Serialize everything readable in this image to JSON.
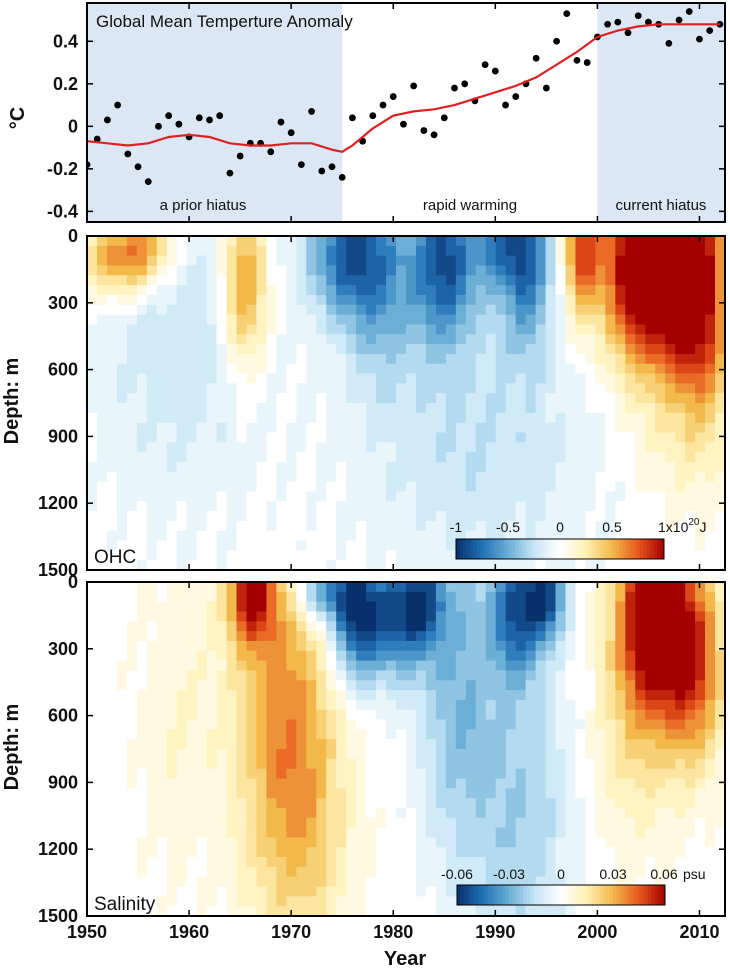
{
  "chart_data": [
    {
      "type": "scatter",
      "title": "Global Mean Temperture Anomaly",
      "ylabel": "°C",
      "ylim": [
        -0.45,
        0.58
      ],
      "xlim": [
        1950,
        2012.5
      ],
      "yticks": [
        "0.4",
        "0.2",
        "0",
        "-0.2",
        "-0.4"
      ],
      "periods": [
        {
          "label": "a prior hiatus",
          "start": 1950,
          "end": 1975,
          "shaded": true
        },
        {
          "label": "rapid warming",
          "start": 1975,
          "end": 2000,
          "shaded": false
        },
        {
          "label": "current hiatus",
          "start": 2000,
          "end": 2012.5,
          "shaded": true
        }
      ],
      "shade_color": "#dbe7f4",
      "series": [
        {
          "kind": "points",
          "color": "#000000",
          "x": [
            1950,
            1951,
            1952,
            1953,
            1954,
            1955,
            1956,
            1957,
            1958,
            1959,
            1960,
            1961,
            1962,
            1963,
            1964,
            1965,
            1966,
            1967,
            1968,
            1969,
            1970,
            1971,
            1972,
            1973,
            1974,
            1975,
            1976,
            1977,
            1978,
            1979,
            1980,
            1981,
            1982,
            1983,
            1984,
            1985,
            1986,
            1987,
            1988,
            1989,
            1990,
            1991,
            1992,
            1993,
            1994,
            1995,
            1996,
            1997,
            1998,
            1999,
            2000,
            2001,
            2002,
            2003,
            2004,
            2005,
            2006,
            2007,
            2008,
            2009,
            2010,
            2011,
            2012
          ],
          "y": [
            -0.18,
            -0.06,
            0.03,
            0.1,
            -0.13,
            -0.19,
            -0.26,
            0.0,
            0.05,
            0.01,
            -0.05,
            0.04,
            0.03,
            0.05,
            -0.22,
            -0.14,
            -0.08,
            -0.08,
            -0.12,
            0.02,
            -0.03,
            -0.18,
            0.07,
            -0.21,
            -0.19,
            -0.24,
            0.04,
            -0.07,
            0.05,
            0.1,
            0.14,
            0.01,
            0.19,
            -0.02,
            -0.04,
            0.04,
            0.18,
            0.2,
            0.12,
            0.29,
            0.26,
            0.1,
            0.14,
            0.2,
            0.32,
            0.18,
            0.4,
            0.53,
            0.31,
            0.3,
            0.42,
            0.48,
            0.49,
            0.44,
            0.52,
            0.49,
            0.48,
            0.39,
            0.5,
            0.54,
            0.41,
            0.45,
            0.48
          ]
        },
        {
          "kind": "line",
          "color": "#e02020",
          "x": [
            1950,
            1952,
            1954,
            1956,
            1958,
            1960,
            1962,
            1964,
            1966,
            1968,
            1970,
            1972,
            1974,
            1975,
            1976,
            1978,
            1980,
            1982,
            1984,
            1986,
            1988,
            1990,
            1992,
            1994,
            1996,
            1998,
            2000,
            2002,
            2004,
            2006,
            2008,
            2010,
            2012
          ],
          "y": [
            -0.07,
            -0.08,
            -0.09,
            -0.08,
            -0.05,
            -0.04,
            -0.05,
            -0.08,
            -0.09,
            -0.09,
            -0.08,
            -0.08,
            -0.11,
            -0.12,
            -0.09,
            -0.01,
            0.05,
            0.07,
            0.08,
            0.1,
            0.13,
            0.16,
            0.19,
            0.23,
            0.29,
            0.35,
            0.42,
            0.45,
            0.47,
            0.48,
            0.48,
            0.48,
            0.48
          ]
        }
      ]
    },
    {
      "type": "heatmap",
      "label": "OHC",
      "ylabel": "Depth: m",
      "yticks": [
        "0",
        "300",
        "600",
        "900",
        "1200",
        "1500"
      ],
      "ylim": [
        1500,
        0
      ],
      "xlim": [
        1950,
        2012.5
      ],
      "colorbar": {
        "ticks": [
          "-1",
          "-0.5",
          "0",
          "0.5",
          "1x10"
        ],
        "unit_sup": "20",
        "unit_suffix": "J",
        "range": [
          -1,
          1
        ]
      },
      "colormap": [
        "#08306b",
        "#2171b5",
        "#6baed6",
        "#c6e5f5",
        "#ffffff",
        "#fff0b3",
        "#f2b94a",
        "#e8581d",
        "#a50000"
      ],
      "features": [
        {
          "t": 1953,
          "d": 100,
          "a": 0.6,
          "st": 2.5,
          "sd": 120
        },
        {
          "t": 1956,
          "d": 60,
          "a": 0.4,
          "st": 2,
          "sd": 100
        },
        {
          "t": 1965.5,
          "d": 220,
          "a": 0.65,
          "st": 1.5,
          "sd": 260
        },
        {
          "t": 1959,
          "d": 500,
          "a": -0.22,
          "st": 6,
          "sd": 500
        },
        {
          "t": 1975,
          "d": 90,
          "a": -0.65,
          "st": 2.6,
          "sd": 180
        },
        {
          "t": 1978.5,
          "d": 180,
          "a": -0.5,
          "st": 2.5,
          "sd": 320
        },
        {
          "t": 1985,
          "d": 100,
          "a": -0.85,
          "st": 2.3,
          "sd": 260
        },
        {
          "t": 1990,
          "d": 40,
          "a": -0.45,
          "st": 1.5,
          "sd": 150
        },
        {
          "t": 1993,
          "d": 70,
          "a": -0.8,
          "st": 1.7,
          "sd": 280
        },
        {
          "t": 1988,
          "d": 900,
          "a": -0.25,
          "st": 8,
          "sd": 450
        },
        {
          "t": 1998.5,
          "d": 60,
          "a": 0.8,
          "st": 1.2,
          "sd": 220
        },
        {
          "t": 2003,
          "d": 130,
          "a": 0.8,
          "st": 2.2,
          "sd": 300
        },
        {
          "t": 2007,
          "d": 140,
          "a": 1.2,
          "st": 2.6,
          "sd": 360
        },
        {
          "t": 2010.5,
          "d": 320,
          "a": 0.7,
          "st": 1.8,
          "sd": 380
        },
        {
          "t": 2008,
          "d": 1000,
          "a": 0.1,
          "st": 3,
          "sd": 200
        }
      ]
    },
    {
      "type": "heatmap",
      "label": "Salinity",
      "ylabel": "Depth: m",
      "yticks": [
        "0",
        "300",
        "600",
        "900",
        "1200",
        "1500"
      ],
      "ylim": [
        1500,
        0
      ],
      "xlim": [
        1950,
        2012.5
      ],
      "xticks": [
        "1950",
        "1960",
        "1970",
        "1980",
        "1990",
        "2000",
        "2010"
      ],
      "xlabel": "Year",
      "colorbar": {
        "ticks": [
          "-0.06",
          "-0.03",
          "0",
          "0.03",
          "0.06"
        ],
        "unit_suffix": "psu",
        "range": [
          -0.06,
          0.06
        ]
      },
      "colormap": [
        "#08306b",
        "#2171b5",
        "#6baed6",
        "#c6e5f5",
        "#ffffff",
        "#fff0b3",
        "#f2b94a",
        "#e8581d",
        "#a50000"
      ],
      "features": [
        {
          "t": 1966,
          "d": 60,
          "a": 0.8,
          "st": 1.5,
          "sd": 150
        },
        {
          "t": 1968.5,
          "d": 450,
          "a": 0.5,
          "st": 3,
          "sd": 700
        },
        {
          "t": 1972,
          "d": 1000,
          "a": 0.35,
          "st": 3,
          "sd": 500
        },
        {
          "t": 1959,
          "d": 600,
          "a": 0.15,
          "st": 3,
          "sd": 500
        },
        {
          "t": 1976.5,
          "d": 150,
          "a": -0.95,
          "st": 1.8,
          "sd": 200
        },
        {
          "t": 1973,
          "d": 40,
          "a": -0.6,
          "st": 2,
          "sd": 100
        },
        {
          "t": 1980.5,
          "d": 150,
          "a": -0.7,
          "st": 2,
          "sd": 200
        },
        {
          "t": 1983,
          "d": 80,
          "a": -0.55,
          "st": 1.5,
          "sd": 150
        },
        {
          "t": 1986,
          "d": 380,
          "a": -0.4,
          "st": 2.5,
          "sd": 500
        },
        {
          "t": 1992,
          "d": 120,
          "a": -0.8,
          "st": 1.8,
          "sd": 220
        },
        {
          "t": 1995,
          "d": 60,
          "a": -0.8,
          "st": 1.3,
          "sd": 140
        },
        {
          "t": 1992,
          "d": 1000,
          "a": -0.35,
          "st": 4,
          "sd": 500
        },
        {
          "t": 2005.5,
          "d": 150,
          "a": 1.25,
          "st": 2.5,
          "sd": 280
        },
        {
          "t": 2009.5,
          "d": 380,
          "a": 0.75,
          "st": 2,
          "sd": 300
        },
        {
          "t": 2004,
          "d": 700,
          "a": 0.3,
          "st": 3,
          "sd": 350
        }
      ]
    }
  ]
}
